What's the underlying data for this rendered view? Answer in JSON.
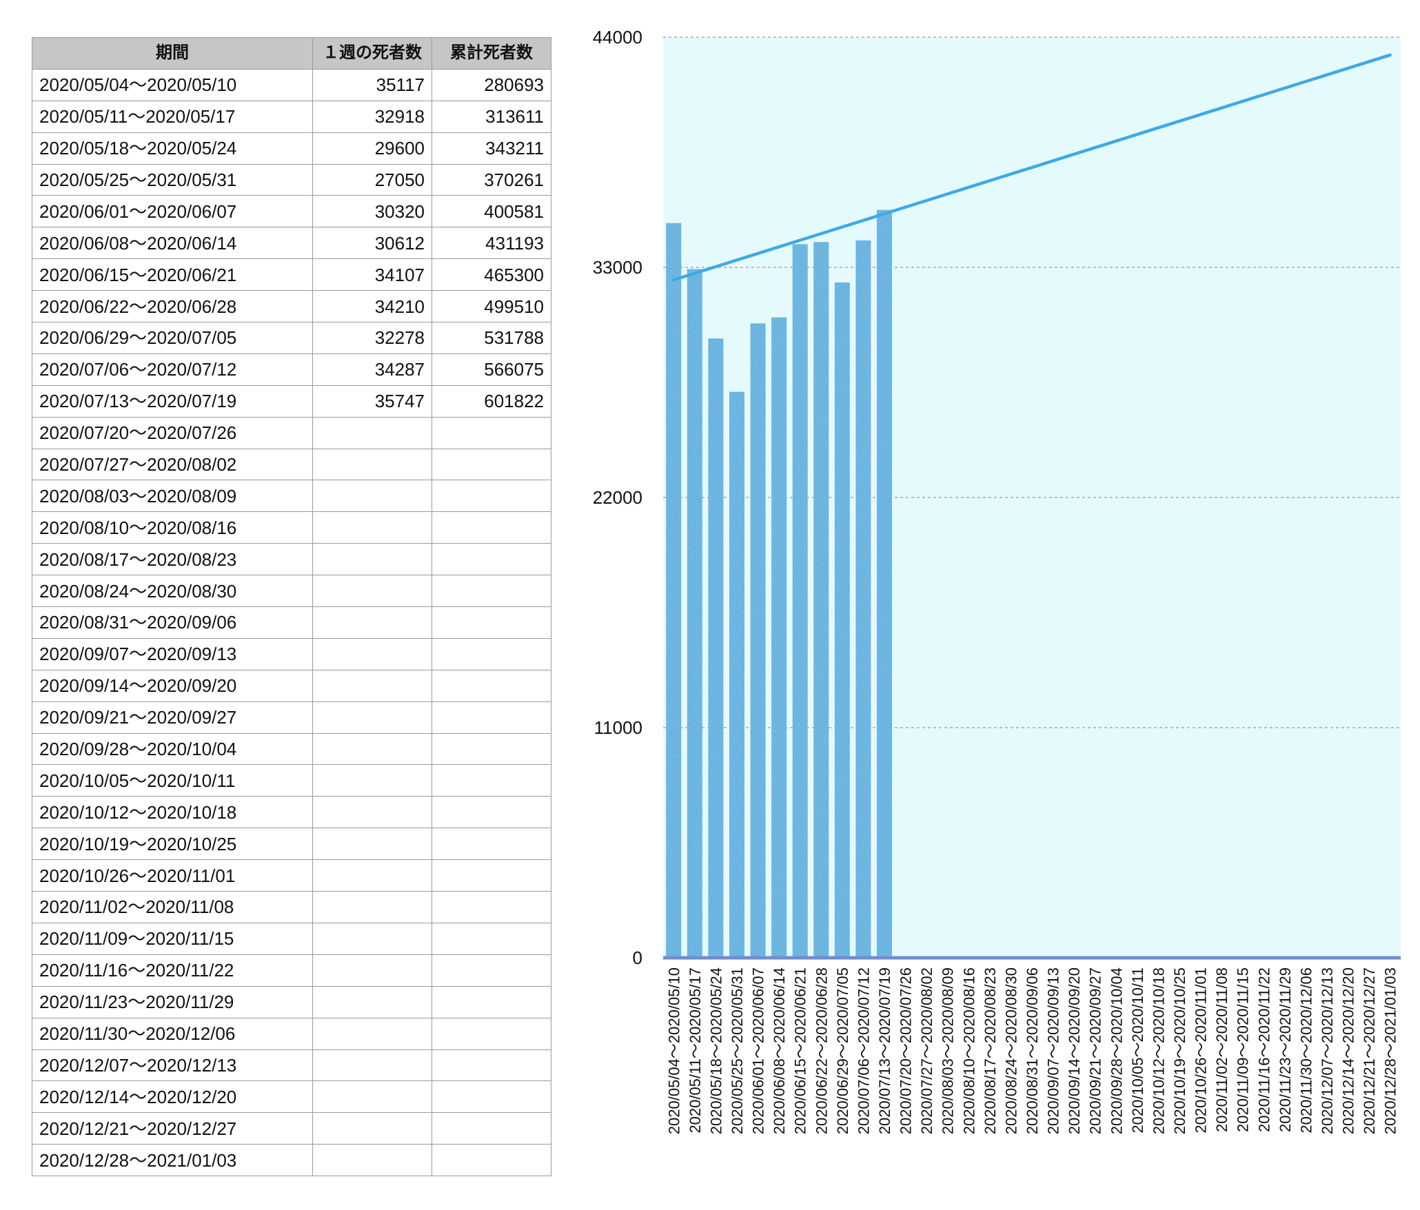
{
  "table": {
    "headers": [
      "期間",
      "１週の死者数",
      "累計死者数"
    ],
    "rows": [
      [
        "2020/05/04〜2020/05/10",
        "35117",
        "280693"
      ],
      [
        "2020/05/11〜2020/05/17",
        "32918",
        "313611"
      ],
      [
        "2020/05/18〜2020/05/24",
        "29600",
        "343211"
      ],
      [
        "2020/05/25〜2020/05/31",
        "27050",
        "370261"
      ],
      [
        "2020/06/01〜2020/06/07",
        "30320",
        "400581"
      ],
      [
        "2020/06/08〜2020/06/14",
        "30612",
        "431193"
      ],
      [
        "2020/06/15〜2020/06/21",
        "34107",
        "465300"
      ],
      [
        "2020/06/22〜2020/06/28",
        "34210",
        "499510"
      ],
      [
        "2020/06/29〜2020/07/05",
        "32278",
        "531788"
      ],
      [
        "2020/07/06〜2020/07/12",
        "34287",
        "566075"
      ],
      [
        "2020/07/13〜2020/07/19",
        "35747",
        "601822"
      ],
      [
        "2020/07/20〜2020/07/26",
        "",
        ""
      ],
      [
        "2020/07/27〜2020/08/02",
        "",
        ""
      ],
      [
        "2020/08/03〜2020/08/09",
        "",
        ""
      ],
      [
        "2020/08/10〜2020/08/16",
        "",
        ""
      ],
      [
        "2020/08/17〜2020/08/23",
        "",
        ""
      ],
      [
        "2020/08/24〜2020/08/30",
        "",
        ""
      ],
      [
        "2020/08/31〜2020/09/06",
        "",
        ""
      ],
      [
        "2020/09/07〜2020/09/13",
        "",
        ""
      ],
      [
        "2020/09/14〜2020/09/20",
        "",
        ""
      ],
      [
        "2020/09/21〜2020/09/27",
        "",
        ""
      ],
      [
        "2020/09/28〜2020/10/04",
        "",
        ""
      ],
      [
        "2020/10/05〜2020/10/11",
        "",
        ""
      ],
      [
        "2020/10/12〜2020/10/18",
        "",
        ""
      ],
      [
        "2020/10/19〜2020/10/25",
        "",
        ""
      ],
      [
        "2020/10/26〜2020/11/01",
        "",
        ""
      ],
      [
        "2020/11/02〜2020/11/08",
        "",
        ""
      ],
      [
        "2020/11/09〜2020/11/15",
        "",
        ""
      ],
      [
        "2020/11/16〜2020/11/22",
        "",
        ""
      ],
      [
        "2020/11/23〜2020/11/29",
        "",
        ""
      ],
      [
        "2020/11/30〜2020/12/06",
        "",
        ""
      ],
      [
        "2020/12/07〜2020/12/13",
        "",
        ""
      ],
      [
        "2020/12/14〜2020/12/20",
        "",
        ""
      ],
      [
        "2020/12/21〜2020/12/27",
        "",
        ""
      ],
      [
        "2020/12/28〜2021/01/03",
        "",
        ""
      ]
    ]
  },
  "chart_data": {
    "type": "bar",
    "categories": [
      "2020/05/04〜2020/05/10",
      "2020/05/11〜2020/05/17",
      "2020/05/18〜2020/05/24",
      "2020/05/25〜2020/05/31",
      "2020/06/01〜2020/06/07",
      "2020/06/08〜2020/06/14",
      "2020/06/15〜2020/06/21",
      "2020/06/22〜2020/06/28",
      "2020/06/29〜2020/07/05",
      "2020/07/06〜2020/07/12",
      "2020/07/13〜2020/07/19",
      "2020/07/20〜2020/07/26",
      "2020/07/27〜2020/08/02",
      "2020/08/03〜2020/08/09",
      "2020/08/10〜2020/08/16",
      "2020/08/17〜2020/08/23",
      "2020/08/24〜2020/08/30",
      "2020/08/31〜2020/09/06",
      "2020/09/07〜2020/09/13",
      "2020/09/14〜2020/09/20",
      "2020/09/21〜2020/09/27",
      "2020/09/28〜2020/10/04",
      "2020/10/05〜2020/10/11",
      "2020/10/12〜2020/10/18",
      "2020/10/19〜2020/10/25",
      "2020/10/26〜2020/11/01",
      "2020/11/02〜2020/11/08",
      "2020/11/09〜2020/11/15",
      "2020/11/16〜2020/11/22",
      "2020/11/23〜2020/11/29",
      "2020/11/30〜2020/12/06",
      "2020/12/07〜2020/12/13",
      "2020/12/14〜2020/12/20",
      "2020/12/21〜2020/12/27",
      "2020/12/28〜2021/01/03"
    ],
    "values": [
      35117,
      32918,
      29600,
      27050,
      30320,
      30612,
      34107,
      34210,
      32278,
      34287,
      35747,
      null,
      null,
      null,
      null,
      null,
      null,
      null,
      null,
      null,
      null,
      null,
      null,
      null,
      null,
      null,
      null,
      null,
      null,
      null,
      null,
      null,
      null,
      null,
      null
    ],
    "trendline": {
      "type": "linear",
      "start": 32400,
      "end": 43150
    },
    "ylim": [
      0,
      44000
    ],
    "yticks": [
      0,
      11000,
      22000,
      33000,
      44000
    ],
    "grid": true,
    "colors": {
      "bar": "#3aa7dc",
      "trend": "#3fa9e6",
      "plot_bg": "#e5fafd",
      "baseline": "#6f8ed0",
      "grid": "#a8a8a8",
      "header_bg": "#c6c6c6"
    }
  }
}
